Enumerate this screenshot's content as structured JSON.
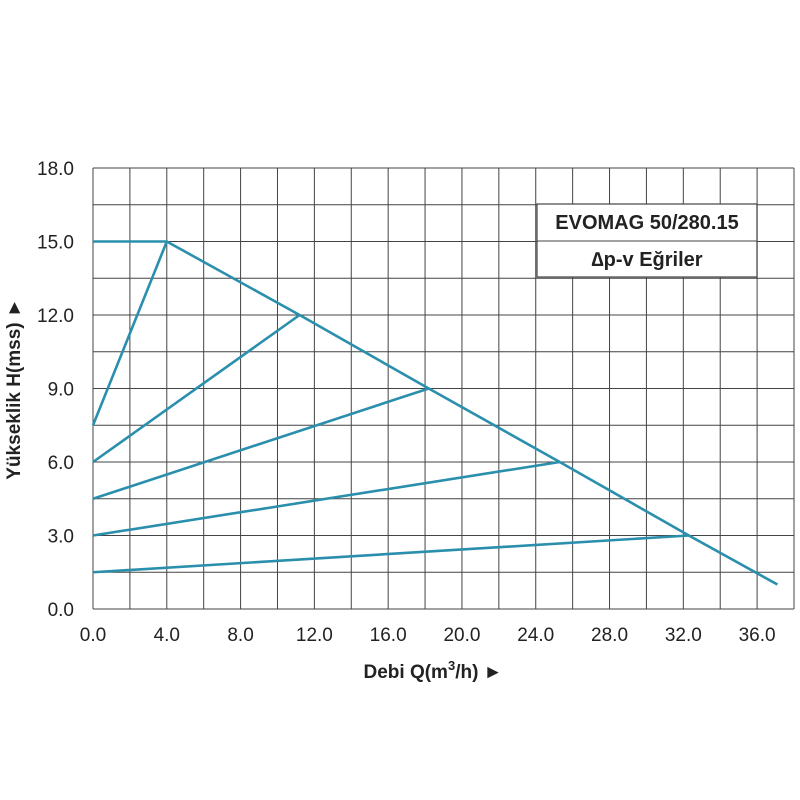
{
  "chart_data": {
    "type": "line",
    "title": "EVOMAG 50/280.15",
    "subtitle": "∆p-v Eğriler",
    "xlabel": "Debi Q(m3/h) ►",
    "xlabel_parts": {
      "text": "Debi Q(m",
      "sup": "3",
      "rest": "/h) ►"
    },
    "ylabel": "Yükseklik H(mss) ►",
    "xlim": [
      0,
      38
    ],
    "ylim": [
      0,
      18
    ],
    "x_grid_step": 2,
    "y_grid_step": 1.5,
    "x_ticks": [
      0,
      4,
      8,
      12,
      16,
      20,
      24,
      28,
      32,
      36
    ],
    "x_tick_labels": [
      "0.0",
      "4.0",
      "8.0",
      "12.0",
      "16.0",
      "20.0",
      "24.0",
      "28.0",
      "32.0",
      "36.0"
    ],
    "y_ticks": [
      0,
      3,
      6,
      9,
      12,
      15,
      18
    ],
    "y_tick_labels": [
      "0.0",
      "3.0",
      "6.0",
      "9.0",
      "12.0",
      "15.0",
      "18.0"
    ],
    "grid": true,
    "legend_position": "top-right",
    "line_color": "#2a8fad",
    "grid_color": "#444444",
    "series": [
      {
        "x": [
          0,
          4.0,
          11.2,
          18.2,
          25.3,
          32.3,
          37.1
        ],
        "y": [
          15,
          15,
          12,
          9,
          6,
          3,
          1.0
        ]
      },
      {
        "x": [
          0,
          4.0
        ],
        "y": [
          7.5,
          15
        ]
      },
      {
        "x": [
          0,
          11.2
        ],
        "y": [
          6,
          12
        ]
      },
      {
        "x": [
          0,
          18.2
        ],
        "y": [
          4.5,
          9
        ]
      },
      {
        "x": [
          0,
          25.3
        ],
        "y": [
          3,
          6
        ]
      },
      {
        "x": [
          0,
          32.3
        ],
        "y": [
          1.5,
          3
        ]
      }
    ]
  }
}
